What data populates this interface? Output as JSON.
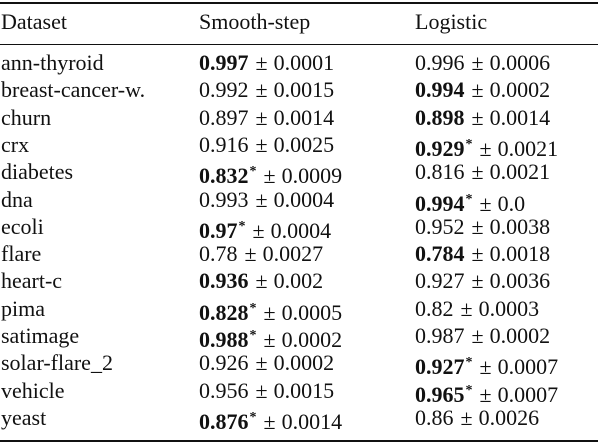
{
  "header": {
    "dataset": "Dataset",
    "smooth": "Smooth-step",
    "logistic": "Logistic"
  },
  "rows": [
    {
      "dataset": "ann-thyroid",
      "smooth": {
        "mean": "0.997",
        "std": "0.0001",
        "bold": true,
        "star": false
      },
      "logistic": {
        "mean": "0.996",
        "std": "0.0006",
        "bold": false,
        "star": false
      }
    },
    {
      "dataset": "breast-cancer-w.",
      "smooth": {
        "mean": "0.992",
        "std": "0.0015",
        "bold": false,
        "star": false
      },
      "logistic": {
        "mean": "0.994",
        "std": "0.0002",
        "bold": true,
        "star": false
      }
    },
    {
      "dataset": "churn",
      "smooth": {
        "mean": "0.897",
        "std": "0.0014",
        "bold": false,
        "star": false
      },
      "logistic": {
        "mean": "0.898",
        "std": "0.0014",
        "bold": true,
        "star": false
      }
    },
    {
      "dataset": "crx",
      "smooth": {
        "mean": "0.916",
        "std": "0.0025",
        "bold": false,
        "star": false
      },
      "logistic": {
        "mean": "0.929",
        "std": "0.0021",
        "bold": true,
        "star": true
      }
    },
    {
      "dataset": "diabetes",
      "smooth": {
        "mean": "0.832",
        "std": "0.0009",
        "bold": true,
        "star": true
      },
      "logistic": {
        "mean": "0.816",
        "std": "0.0021",
        "bold": false,
        "star": false
      }
    },
    {
      "dataset": "dna",
      "smooth": {
        "mean": "0.993",
        "std": "0.0004",
        "bold": false,
        "star": false
      },
      "logistic": {
        "mean": "0.994",
        "std": "0.0",
        "bold": true,
        "star": true
      }
    },
    {
      "dataset": "ecoli",
      "smooth": {
        "mean": "0.97",
        "std": "0.0004",
        "bold": true,
        "star": true
      },
      "logistic": {
        "mean": "0.952",
        "std": "0.0038",
        "bold": false,
        "star": false
      }
    },
    {
      "dataset": "flare",
      "smooth": {
        "mean": "0.78",
        "std": "0.0027",
        "bold": false,
        "star": false
      },
      "logistic": {
        "mean": "0.784",
        "std": "0.0018",
        "bold": true,
        "star": false
      }
    },
    {
      "dataset": "heart-c",
      "smooth": {
        "mean": "0.936",
        "std": "0.002",
        "bold": true,
        "star": false
      },
      "logistic": {
        "mean": "0.927",
        "std": "0.0036",
        "bold": false,
        "star": false
      }
    },
    {
      "dataset": "pima",
      "smooth": {
        "mean": "0.828",
        "std": "0.0005",
        "bold": true,
        "star": true
      },
      "logistic": {
        "mean": "0.82",
        "std": "0.0003",
        "bold": false,
        "star": false
      }
    },
    {
      "dataset": "satimage",
      "smooth": {
        "mean": "0.988",
        "std": "0.0002",
        "bold": true,
        "star": true
      },
      "logistic": {
        "mean": "0.987",
        "std": "0.0002",
        "bold": false,
        "star": false
      }
    },
    {
      "dataset": "solar-flare_2",
      "smooth": {
        "mean": "0.926",
        "std": "0.0002",
        "bold": false,
        "star": false
      },
      "logistic": {
        "mean": "0.927",
        "std": "0.0007",
        "bold": true,
        "star": true
      }
    },
    {
      "dataset": "vehicle",
      "smooth": {
        "mean": "0.956",
        "std": "0.0015",
        "bold": false,
        "star": false
      },
      "logistic": {
        "mean": "0.965",
        "std": "0.0007",
        "bold": true,
        "star": true
      }
    },
    {
      "dataset": "yeast",
      "smooth": {
        "mean": "0.876",
        "std": "0.0014",
        "bold": true,
        "star": true
      },
      "logistic": {
        "mean": "0.86",
        "std": "0.0026",
        "bold": false,
        "star": false
      }
    }
  ],
  "symbols": {
    "pm": "±",
    "star": "*"
  }
}
